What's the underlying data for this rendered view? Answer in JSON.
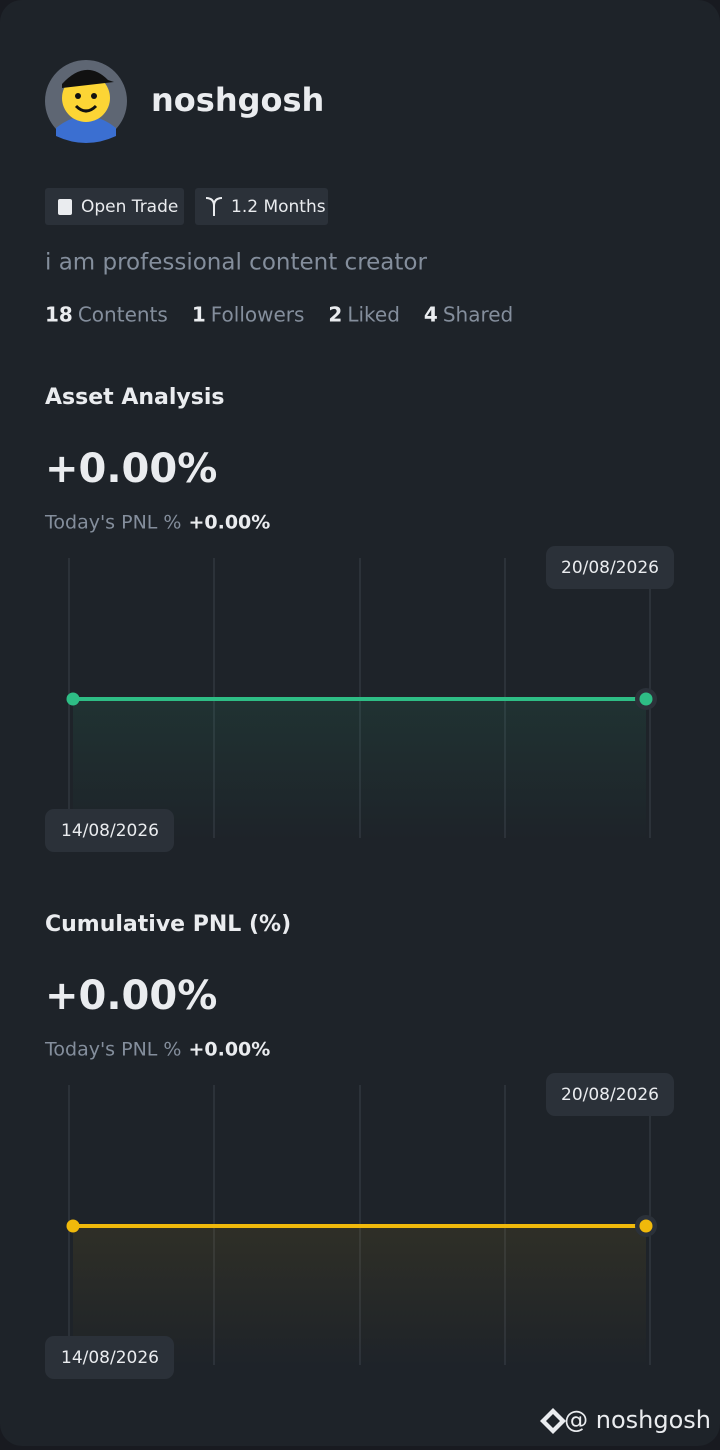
{
  "profile": {
    "username": "noshgosh",
    "tags": [
      "Open Trade",
      "1.2 Months"
    ],
    "bio": "i am professional content creator",
    "stats": [
      {
        "value": 18,
        "label": "Contents"
      },
      {
        "value": 1,
        "label": "Followers"
      },
      {
        "value": 2,
        "label": "Liked"
      },
      {
        "value": 4,
        "label": "Shared"
      }
    ]
  },
  "sections": [
    {
      "title": "Asset Analysis",
      "value": "+0.00%",
      "pnl_label": "Today's PNL %",
      "pnl_value": "+0.00%",
      "chart": {
        "start_date": "14/08/2026",
        "end_date": "20/08/2026",
        "values": [
          0,
          0
        ],
        "color": "#2ebd85"
      }
    },
    {
      "title": "Cumulative PNL (%)",
      "value": "+0.00%",
      "pnl_label": "Today's PNL %",
      "pnl_value": "+0.00%",
      "chart": {
        "start_date": "14/08/2026",
        "end_date": "20/08/2026",
        "values": [
          0,
          0
        ],
        "color": "#f0b90b"
      }
    }
  ],
  "watermark": "@ noshgosh"
}
